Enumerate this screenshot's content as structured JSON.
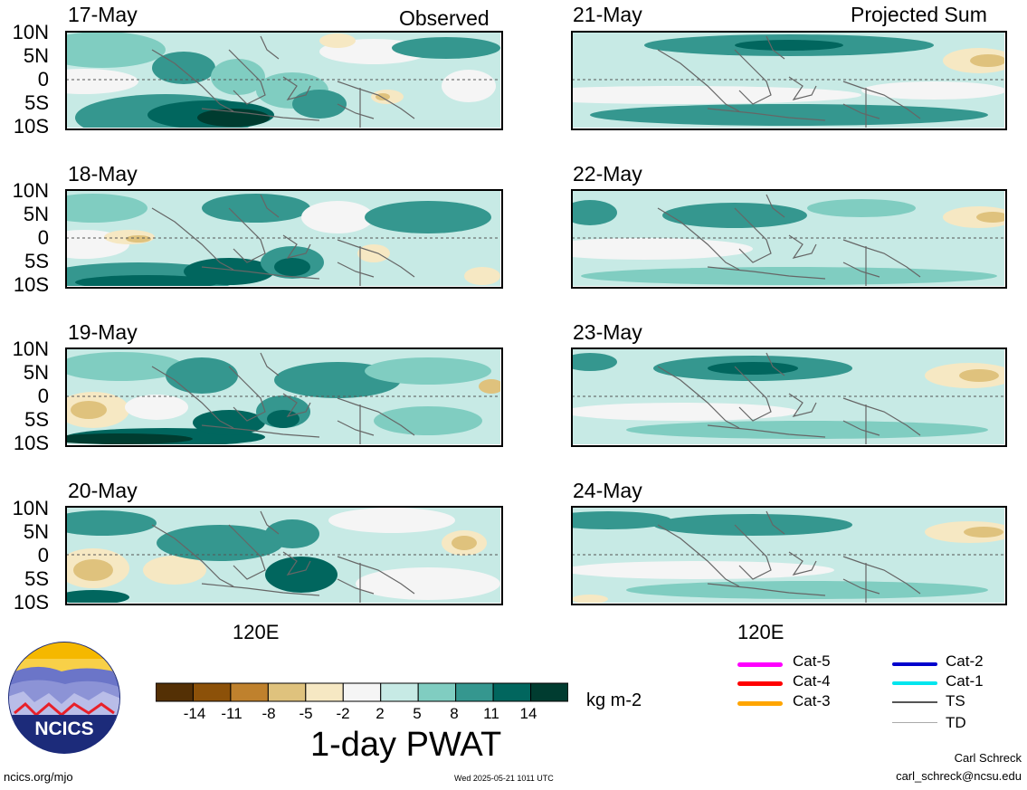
{
  "columns": {
    "left_title": "Observed",
    "right_title": "Projected Sum"
  },
  "lat_labels": [
    "10N",
    "5N",
    "0",
    "5S",
    "10S"
  ],
  "lon_label": "120E",
  "panels_left": [
    {
      "date": "17-May"
    },
    {
      "date": "18-May"
    },
    {
      "date": "19-May"
    },
    {
      "date": "20-May"
    }
  ],
  "panels_right": [
    {
      "date": "21-May"
    },
    {
      "date": "22-May"
    },
    {
      "date": "23-May"
    },
    {
      "date": "24-May"
    }
  ],
  "colorbar": {
    "title": "1-day PWAT",
    "units": "kg m-2",
    "ticks": [
      "-14",
      "-11",
      "-8",
      "-5",
      "-2",
      "2",
      "5",
      "8",
      "11",
      "14"
    ],
    "colors": [
      "#543005",
      "#8c5109",
      "#bf812d",
      "#dfc27d",
      "#f6e8c3",
      "#f5f5f5",
      "#c7eae5",
      "#80cdc1",
      "#35978f",
      "#01665e",
      "#003c30"
    ]
  },
  "legend": [
    {
      "label": "Cat-5",
      "color": "#ff00ff"
    },
    {
      "label": "Cat-4",
      "color": "#ff0000"
    },
    {
      "label": "Cat-3",
      "color": "#ffa500"
    },
    {
      "label": "Cat-2",
      "color": "#0000cd"
    },
    {
      "label": "Cat-1",
      "color": "#00e5ee"
    },
    {
      "label": "TS",
      "color": "#555555"
    },
    {
      "label": "TD",
      "color": "#aaaaaa"
    }
  ],
  "logo": {
    "text": "NCICS"
  },
  "footer": {
    "left": "ncics.org/mjo",
    "center": "Wed 2025-05-21 1011 UTC",
    "author": "Carl Schreck",
    "email": "carl_schreck@ncsu.edu"
  }
}
